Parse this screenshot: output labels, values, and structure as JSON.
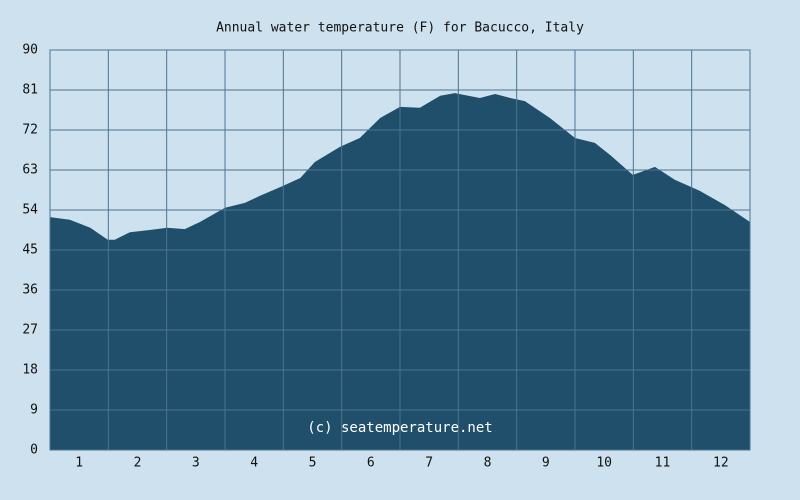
{
  "chart_data": {
    "type": "area",
    "title": "Annual water temperature (F) for Bacucco, Italy",
    "watermark": "(c) seatemperature.net",
    "x": [
      0.5,
      0.84,
      1.19,
      1.49,
      1.61,
      1.87,
      2.21,
      2.51,
      2.81,
      3.07,
      3.5,
      3.84,
      4.1,
      4.49,
      4.79,
      5.04,
      5.47,
      5.81,
      6.16,
      6.5,
      6.84,
      7.19,
      7.44,
      7.87,
      8.13,
      8.39,
      8.64,
      9.07,
      9.5,
      9.84,
      10.1,
      10.49,
      10.87,
      11.21,
      11.64,
      12.07,
      12.5
    ],
    "values": [
      52.4,
      51.8,
      50,
      47.3,
      47.3,
      49,
      49.5,
      50,
      49.7,
      51.3,
      54.5,
      55.6,
      57.2,
      59.4,
      61.2,
      64.8,
      68.2,
      70.2,
      74.7,
      77.2,
      77,
      79.7,
      80.3,
      79.2,
      80.1,
      79.2,
      78.5,
      74.7,
      70.2,
      69.1,
      66.4,
      61.9,
      63.7,
      60.8,
      58.3,
      55.1,
      51.3
    ],
    "color": "#1f4f6b",
    "xlim": [
      0.5,
      12.5
    ],
    "xticks": [
      1,
      2,
      3,
      4,
      5,
      6,
      7,
      8,
      9,
      10,
      11,
      12
    ],
    "ylim": [
      0,
      90
    ],
    "yticks": [
      0,
      9,
      18,
      27,
      36,
      45,
      54,
      63,
      72,
      81,
      90
    ],
    "grid": true
  }
}
